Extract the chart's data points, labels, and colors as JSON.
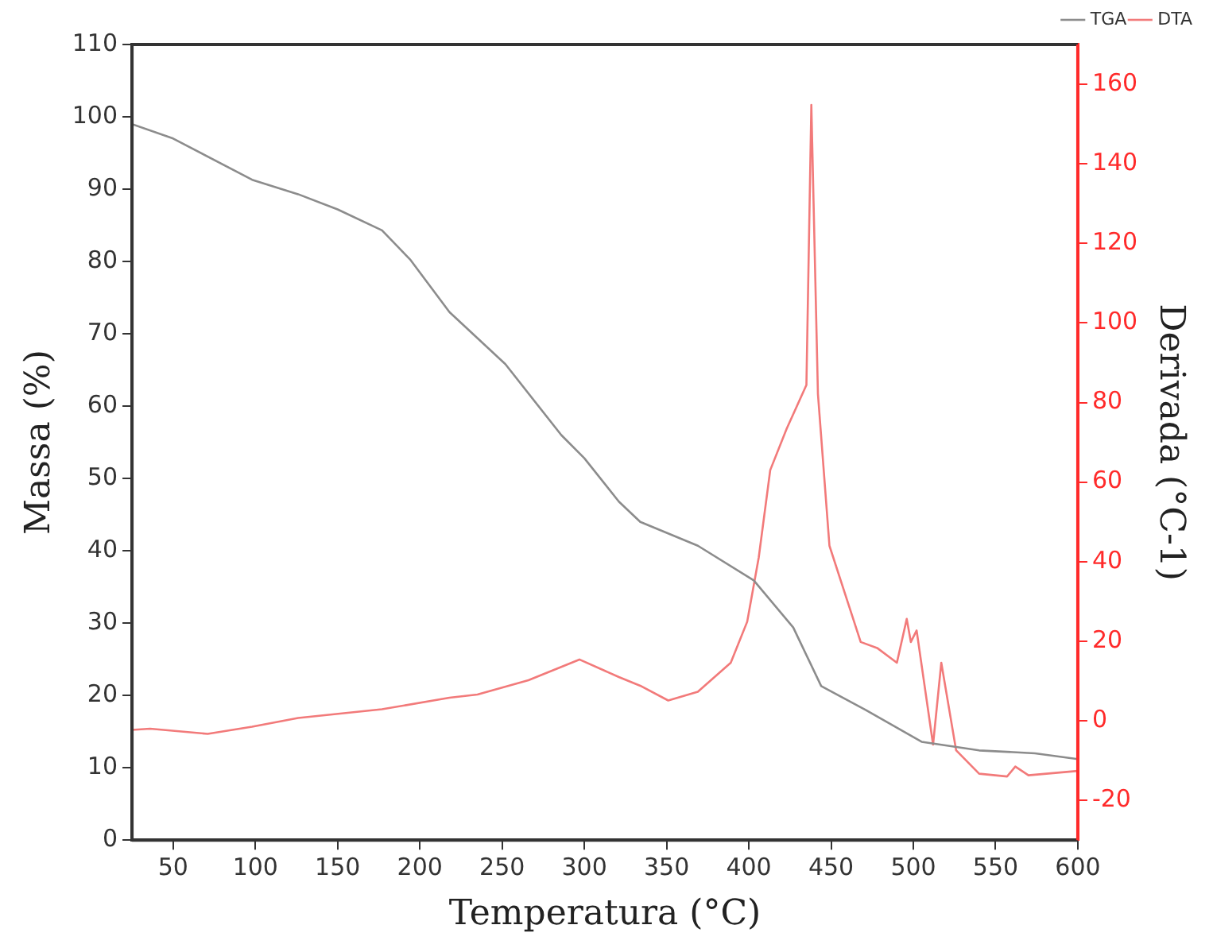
{
  "chart_data": {
    "type": "line",
    "xlabel": "Temperatura (°C)",
    "ylabel": "Massa (%)",
    "y2label": "Derivada (°C-1)",
    "xlim": [
      25,
      600
    ],
    "xticks": [
      50,
      100,
      150,
      200,
      250,
      300,
      350,
      400,
      450,
      500,
      550,
      600
    ],
    "ylim": [
      0,
      110
    ],
    "yticks": [
      0,
      10,
      20,
      30,
      40,
      50,
      60,
      70,
      80,
      90,
      100,
      110
    ],
    "y2lim": [
      -30,
      170
    ],
    "y2ticks": [
      -20,
      0,
      20,
      40,
      60,
      80,
      100,
      120,
      140,
      160
    ],
    "grid": false,
    "legend": "top right",
    "marker": "none",
    "line_style": "solid",
    "series": [
      {
        "name": "TGA",
        "color": "#8c8c8c",
        "x": [
          25,
          50,
          98,
          126,
          150,
          177,
          194,
          218,
          252,
          286,
          300,
          321,
          334,
          369,
          403,
          427,
          444,
          471,
          505,
          540,
          574,
          600
        ],
        "values": [
          99,
          97,
          91.3,
          89.3,
          87.2,
          84.3,
          80.3,
          73,
          65.8,
          56,
          52.8,
          46.8,
          44,
          40.7,
          35.9,
          29.4,
          21.3,
          18,
          13.6,
          12.4,
          12,
          11.2
        ]
      },
      {
        "name": "DTA",
        "color": "#f27a7a",
        "axis": "y2",
        "x": [
          25,
          36,
          71,
          98,
          126,
          177,
          218,
          235,
          266,
          297,
          321,
          334,
          351,
          369,
          389,
          399,
          406,
          413,
          423,
          435,
          438,
          442,
          449,
          468,
          478,
          490,
          496,
          498.5,
          502,
          512,
          517,
          526,
          540,
          557,
          562,
          570,
          600
        ],
        "values": [
          -2.3,
          -2,
          -3.3,
          -1.5,
          0.7,
          2.9,
          5.8,
          6.6,
          10.2,
          15.4,
          11,
          8.8,
          5.1,
          7.3,
          14.6,
          24.9,
          41,
          63,
          73.4,
          84.4,
          154.8,
          82.2,
          44,
          19.8,
          18.3,
          14.6,
          25.6,
          19.8,
          22.7,
          -6,
          14.6,
          -7.4,
          -13.3,
          -14,
          -11.5,
          -13.7,
          -12.6
        ]
      }
    ]
  }
}
